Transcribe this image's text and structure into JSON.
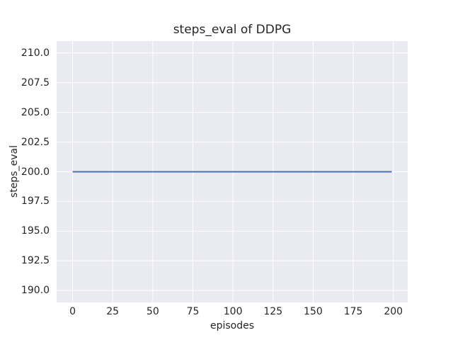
{
  "chart_data": {
    "type": "line",
    "title": "steps_eval of DDPG",
    "xlabel": "episodes",
    "ylabel": "steps_eval",
    "x_ticks": [
      0,
      25,
      50,
      75,
      100,
      125,
      150,
      175,
      200
    ],
    "x_tick_labels": [
      "0",
      "25",
      "50",
      "75",
      "100",
      "125",
      "150",
      "175",
      "200"
    ],
    "y_ticks": [
      190,
      192.5,
      195,
      197.5,
      200,
      202.5,
      205,
      207.5,
      210
    ],
    "y_tick_labels": [
      "190.0",
      "192.5",
      "195.0",
      "197.5",
      "200.0",
      "202.5",
      "205.0",
      "207.5",
      "210.0"
    ],
    "xlim": [
      -9.95,
      208.95
    ],
    "ylim": [
      189,
      211
    ],
    "grid": true,
    "legend": false,
    "series": [
      {
        "name": "steps_eval",
        "color": "#4c72b0",
        "x": [
          0,
          199
        ],
        "y": [
          200,
          200
        ],
        "description": "constant value 200 for every evaluation episode from 0 to 199"
      }
    ]
  },
  "style": {
    "figure_background": "#ffffff",
    "axes_background": "#eaeaf2",
    "grid_color": "#ffffff",
    "text_color": "#262626",
    "line_width": 2,
    "grid_width": 1
  }
}
